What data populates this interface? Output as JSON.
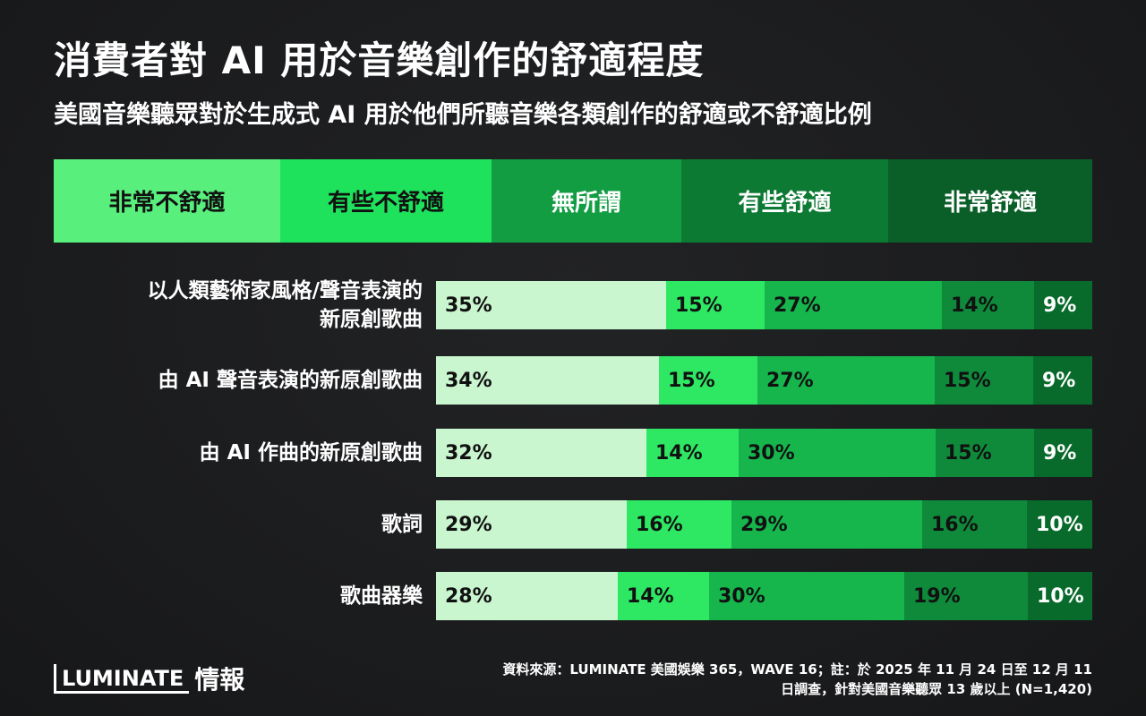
{
  "header": {
    "title": "消費者對 AI 用於音樂創作的舒適程度",
    "subtitle": "美國音樂聽眾對於生成式 AI 用於他們所聽音樂各類創作的舒適或不舒適比例"
  },
  "colors": {
    "categories": [
      "#c9f5cf",
      "#2ee864",
      "#16b64d",
      "#0f8a3b",
      "#086b2b"
    ],
    "legend_bg": [
      "#58ef7d",
      "#1fe25c",
      "#129d43",
      "#0c7a33",
      "#0a5e28"
    ],
    "text_dark": "#111111",
    "text_light": "#ffffff"
  },
  "chart_data": {
    "type": "bar",
    "orientation": "horizontal",
    "stacked": "100%",
    "legend_placement": "top",
    "series": [
      {
        "name": "非常不舒適",
        "values": [
          35,
          34,
          32,
          29,
          28
        ]
      },
      {
        "name": "有些不舒適",
        "values": [
          15,
          15,
          14,
          16,
          14
        ]
      },
      {
        "name": "無所謂",
        "values": [
          27,
          27,
          30,
          29,
          30
        ]
      },
      {
        "name": "有些舒適",
        "values": [
          14,
          15,
          15,
          16,
          19
        ]
      },
      {
        "name": "非常舒適",
        "values": [
          9,
          9,
          9,
          10,
          10
        ]
      }
    ],
    "categories": [
      [
        "以人類藝術家風格/聲音表演的",
        "新原創歌曲"
      ],
      [
        "由 AI 聲音表演的新原創歌曲"
      ],
      [
        "由 AI 作曲的新原創歌曲"
      ],
      [
        "歌詞"
      ],
      [
        "歌曲器樂"
      ]
    ],
    "labels": [
      [
        "35%",
        "15%",
        "27%",
        "14%",
        "9%"
      ],
      [
        "34%",
        "15%",
        "27%",
        "15%",
        "9%"
      ],
      [
        "32%",
        "14%",
        "30%",
        "15%",
        "9%"
      ],
      [
        "29%",
        "16%",
        "29%",
        "16%",
        "10%"
      ],
      [
        "28%",
        "14%",
        "30%",
        "19%",
        "10%"
      ]
    ]
  },
  "footer": {
    "logo_mark": "LUMINATE",
    "logo_text": "情報",
    "source_line1": "資料來源：LUMINATE 美國娛樂 365，WAVE 16；註：於 2025 年 11 月 24 日至 12 月 11",
    "source_line2": "日調查，針對美國音樂聽眾 13 歲以上 (N=1,420)"
  }
}
